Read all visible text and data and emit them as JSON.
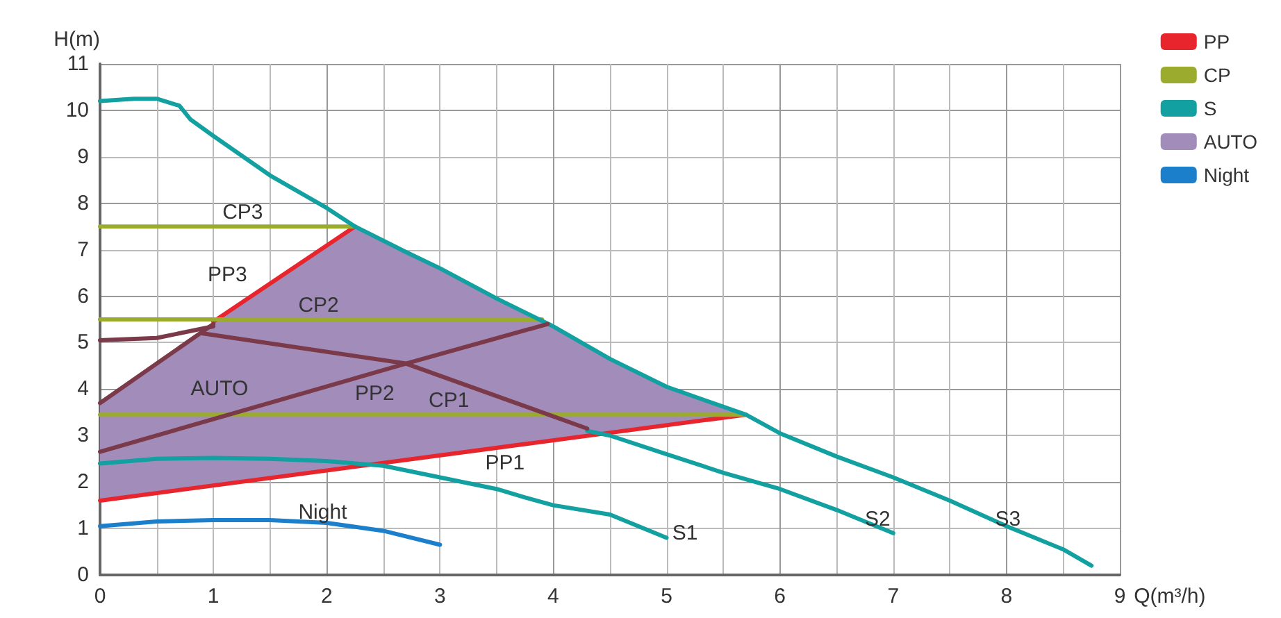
{
  "chart_data": {
    "type": "line",
    "xlabel": "Q(m³/h)",
    "ylabel": "H(m)",
    "xlim": [
      0,
      9
    ],
    "xticks": [
      0,
      1,
      2,
      3,
      4,
      5,
      6,
      7,
      8,
      9
    ],
    "ylim": [
      0,
      11
    ],
    "yticks": [
      0,
      1,
      2,
      3,
      4,
      5,
      6,
      7,
      8,
      9,
      10,
      11
    ],
    "grid": true,
    "legend": "top right",
    "marker": "none",
    "series": [
      {
        "name": "PP",
        "color": "#e8242c",
        "x": [
          0,
          5.7
        ],
        "values": [
          1.6,
          3.45
        ]
      },
      {
        "color": "#e8242c",
        "x": [
          1,
          2.25
        ],
        "values": [
          5.45,
          7.5
        ]
      },
      {
        "name": "CP",
        "color": "#9aab2d",
        "x": [
          0,
          5.7
        ],
        "values": [
          3.45,
          3.45
        ]
      },
      {
        "color": "#9aab2d",
        "x": [
          0,
          3.9
        ],
        "values": [
          5.5,
          5.5
        ]
      },
      {
        "color": "#9aab2d",
        "x": [
          0,
          2.25
        ],
        "values": [
          7.5,
          7.5
        ]
      },
      {
        "name": "S",
        "color": "#12a0a0",
        "x": [
          0,
          0.3,
          0.5,
          0.7,
          0.8,
          1,
          1.5,
          2,
          2.25,
          2.7,
          3,
          3.5,
          4,
          4.5,
          5,
          5.7,
          6,
          6.5,
          7,
          7.5,
          8,
          8.5,
          8.75
        ],
        "values": [
          10.2,
          10.25,
          10.25,
          10.1,
          9.8,
          9.45,
          8.6,
          7.9,
          7.5,
          6.95,
          6.6,
          5.95,
          5.35,
          4.65,
          4.05,
          3.45,
          3.05,
          2.55,
          2.1,
          1.6,
          1.05,
          0.55,
          0.2
        ]
      },
      {
        "color": "#12a0a0",
        "x": [
          0,
          0.5,
          1,
          1.5,
          2,
          2.5,
          3,
          3.5,
          3.75,
          4,
          4.5,
          5
        ],
        "values": [
          2.4,
          2.5,
          2.52,
          2.5,
          2.45,
          2.35,
          2.1,
          1.85,
          1.67,
          1.5,
          1.3,
          0.8
        ]
      },
      {
        "color": "#12a0a0",
        "x": [
          4.3,
          4.5,
          5,
          5.5,
          6,
          6.5,
          7
        ],
        "values": [
          3.1,
          3.0,
          2.6,
          2.2,
          1.85,
          1.4,
          0.9
        ]
      },
      {
        "name": "AUTO",
        "type": "area",
        "color": "#a18cba",
        "x": [
          0,
          1,
          2.25,
          2.7,
          3,
          3.5,
          4,
          4.5,
          5,
          5.7,
          0
        ],
        "values": [
          3.7,
          5.45,
          7.5,
          6.95,
          6.6,
          5.95,
          5.35,
          4.65,
          4.05,
          3.45,
          1.6
        ]
      },
      {
        "color": "#7b3a4a",
        "x": [
          0,
          0.5,
          1
        ],
        "values": [
          5.05,
          5.1,
          5.35
        ]
      },
      {
        "color": "#7b3a4a",
        "x": [
          0,
          1
        ],
        "values": [
          3.7,
          5.4
        ]
      },
      {
        "color": "#7b3a4a",
        "x": [
          0,
          2.7,
          3.95
        ],
        "values": [
          2.65,
          4.55,
          5.4
        ]
      },
      {
        "color": "#7b3a4a",
        "x": [
          0.9,
          2.7,
          4.3
        ],
        "values": [
          5.2,
          4.55,
          3.15
        ]
      },
      {
        "name": "Night",
        "color": "#1b7fcc",
        "x": [
          0,
          0.5,
          1,
          1.5,
          2,
          2.5,
          3
        ],
        "values": [
          1.05,
          1.15,
          1.18,
          1.18,
          1.12,
          0.95,
          0.65
        ]
      }
    ],
    "annotations": [
      "CP3",
      "PP3",
      "CP2",
      "AUTO",
      "PP2",
      "CP1",
      "PP1",
      "Night",
      "S1",
      "S2",
      "S3"
    ]
  }
}
